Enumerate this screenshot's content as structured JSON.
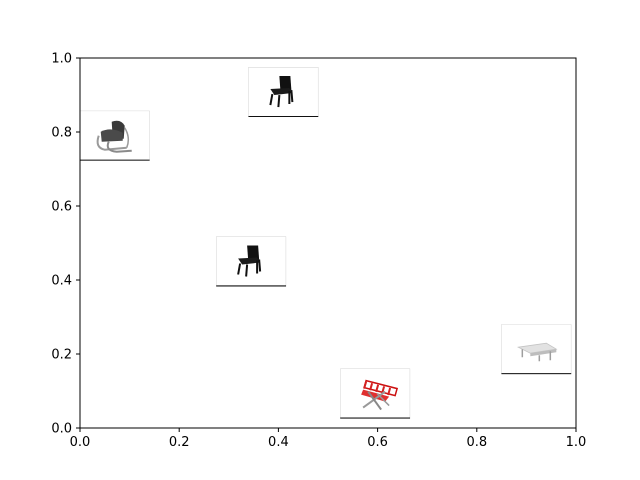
{
  "chart_data": {
    "type": "scatter",
    "marker": "image-thumbnail",
    "xlim": [
      0.0,
      1.0
    ],
    "ylim": [
      0.0,
      1.0
    ],
    "x_ticks": [
      0.0,
      0.2,
      0.4,
      0.6,
      0.8,
      1.0
    ],
    "y_ticks": [
      0.0,
      0.2,
      0.4,
      0.6,
      0.8,
      1.0
    ],
    "x_tick_labels": [
      "0.0",
      "0.2",
      "0.4",
      "0.6",
      "0.8",
      "1.0"
    ],
    "y_tick_labels": [
      "0.0",
      "0.2",
      "0.4",
      "0.6",
      "0.8",
      "1.0"
    ],
    "grid": false,
    "points": [
      {
        "x": 0.07,
        "y": 0.79,
        "thumbnail": "dark-armchair-chrome-frame-icon"
      },
      {
        "x": 0.41,
        "y": 0.908,
        "thumbnail": "black-chair-icon"
      },
      {
        "x": 0.345,
        "y": 0.45,
        "thumbnail": "black-chair-icon"
      },
      {
        "x": 0.595,
        "y": 0.093,
        "thumbnail": "red-folding-chair-icon"
      },
      {
        "x": 0.92,
        "y": 0.213,
        "thumbnail": "white-bench-icon"
      }
    ]
  }
}
